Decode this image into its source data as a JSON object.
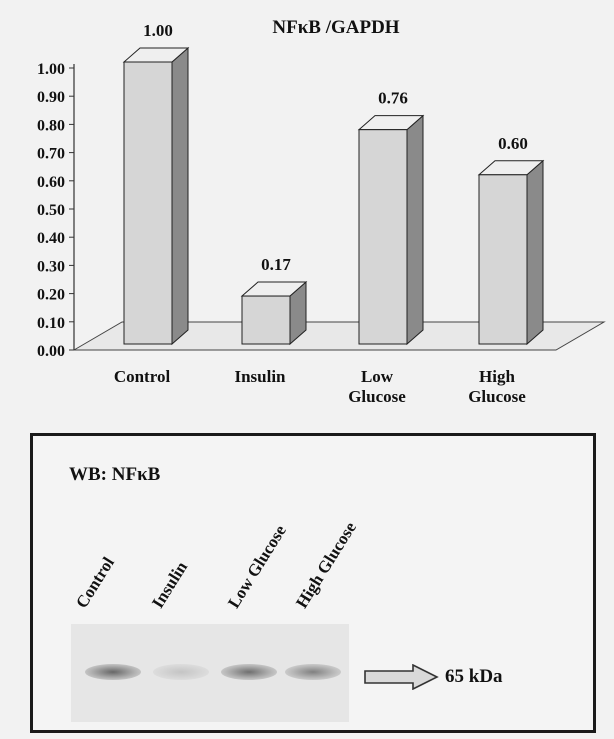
{
  "chart_data": {
    "type": "bar",
    "title": "NFκB /GAPDH",
    "categories": [
      "Control",
      "Insulin",
      "Low Glucose",
      "High Glucose"
    ],
    "category_lines": [
      [
        "Control"
      ],
      [
        "Insulin"
      ],
      [
        "Low",
        "Glucose"
      ],
      [
        "High",
        "Glucose"
      ]
    ],
    "values": [
      1.0,
      0.17,
      0.76,
      0.6
    ],
    "value_labels": [
      "1.00",
      "0.17",
      "0.76",
      "0.60"
    ],
    "ylim": [
      0,
      1
    ],
    "yticks": [
      "0.00",
      "0.10",
      "0.20",
      "0.30",
      "0.40",
      "0.50",
      "0.60",
      "0.70",
      "0.80",
      "0.90",
      "1.00"
    ],
    "xlabel": "",
    "ylabel": "",
    "style": "3d",
    "colors": {
      "bar_front": "#d6d6d6",
      "bar_side": "#8a8a8a",
      "bar_top": "#efefef",
      "floor": "#e8e8e8"
    }
  },
  "western_blot": {
    "title": "WB: NFκB",
    "lanes": [
      "Control",
      "Insulin",
      "Low Glucose",
      "High Glucose"
    ],
    "band_size": "65 kDa",
    "band_intensity": [
      0.75,
      0.2,
      0.7,
      0.6
    ]
  }
}
